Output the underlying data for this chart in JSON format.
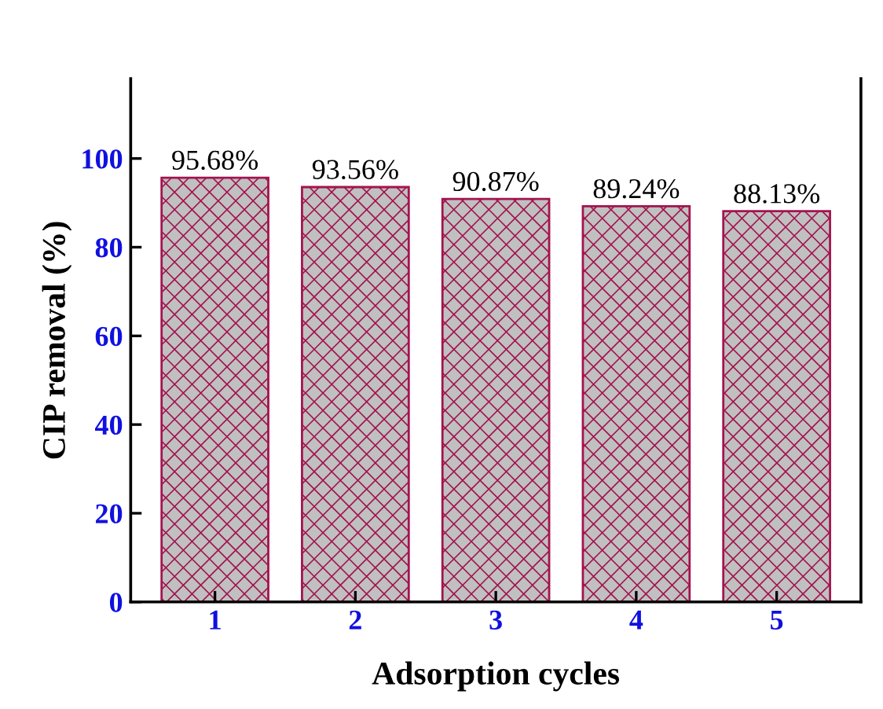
{
  "chart_data": {
    "type": "bar",
    "xlabel": "Adsorption cycles",
    "ylabel": "CIP removal (%)",
    "categories": [
      "1",
      "2",
      "3",
      "4",
      "5"
    ],
    "values": [
      95.68,
      93.56,
      90.87,
      89.24,
      88.13
    ],
    "value_labels": [
      "95.68%",
      "93.56%",
      "90.87%",
      "89.24%",
      "88.13%"
    ],
    "color": "#a3144f",
    "ylim": [
      0,
      118
    ],
    "yticks": [
      0,
      20,
      40,
      60,
      80,
      100
    ],
    "grid": false,
    "legend": false
  }
}
